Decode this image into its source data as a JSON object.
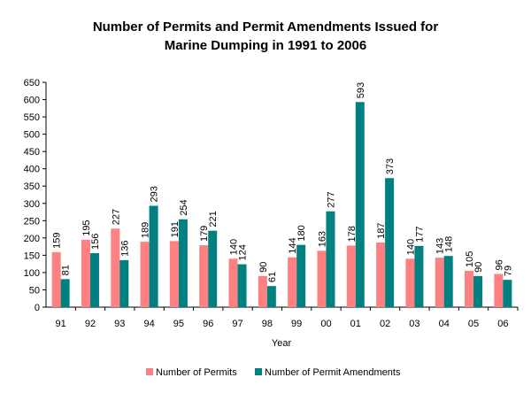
{
  "chart_data": {
    "type": "bar",
    "title_lines": [
      "Number of Permits and Permit Amendments Issued for",
      "Marine Dumping in 1991 to 2006"
    ],
    "xlabel": "Year",
    "ylabel": "",
    "ylim": [
      0,
      650
    ],
    "yticks": [
      0,
      50,
      100,
      150,
      200,
      250,
      300,
      350,
      400,
      450,
      500,
      550,
      600,
      650
    ],
    "grid": false,
    "legend_position": "bottom",
    "categories": [
      "91",
      "92",
      "93",
      "94",
      "95",
      "96",
      "97",
      "98",
      "99",
      "00",
      "01",
      "02",
      "03",
      "04",
      "05",
      "06"
    ],
    "series": [
      {
        "name": "Number of Permits",
        "color": "#FF8080",
        "values": [
          159,
          195,
          227,
          189,
          191,
          179,
          140,
          90,
          144,
          163,
          178,
          187,
          140,
          143,
          105,
          96
        ]
      },
      {
        "name": "Number of Permit Amendments",
        "color": "#008080",
        "values": [
          81,
          156,
          136,
          293,
          254,
          221,
          124,
          61,
          180,
          277,
          593,
          373,
          177,
          148,
          90,
          79
        ]
      }
    ]
  }
}
